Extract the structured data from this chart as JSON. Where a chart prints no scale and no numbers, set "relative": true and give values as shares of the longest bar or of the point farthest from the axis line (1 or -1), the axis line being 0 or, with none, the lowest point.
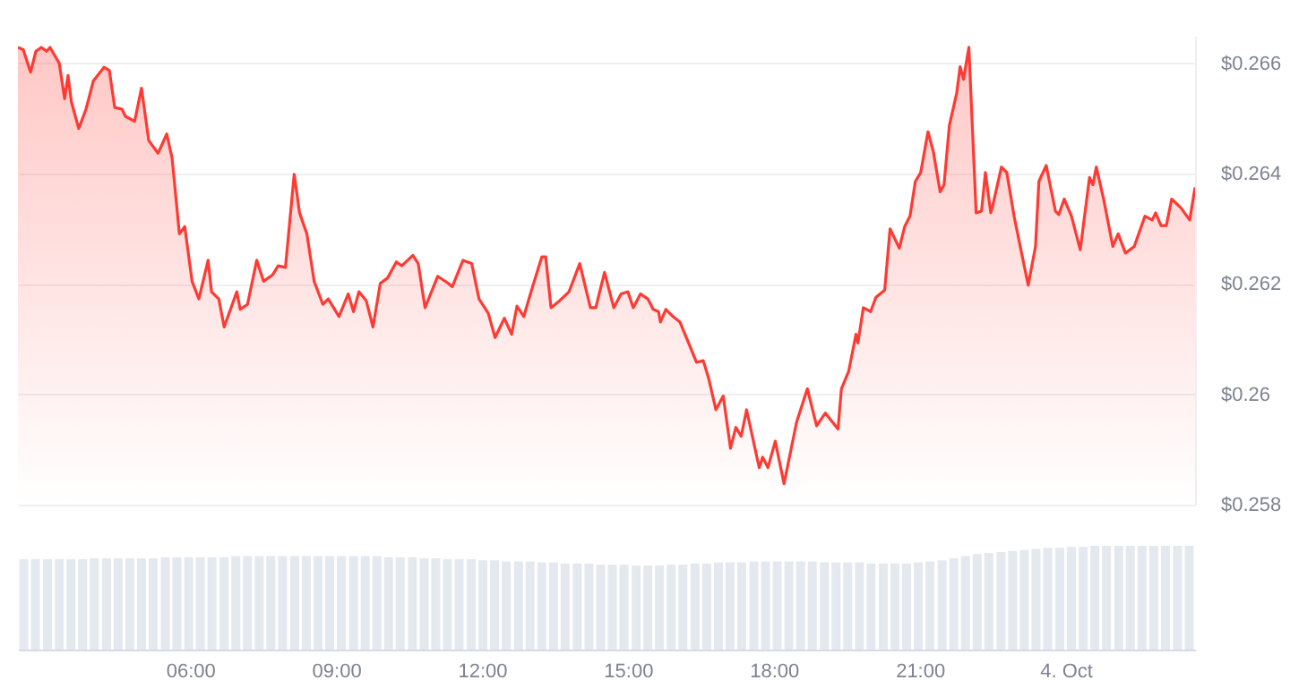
{
  "chart_data": [
    {
      "type": "area",
      "tick_labels": "y",
      "grid": "y",
      "xlim": [
        2.46,
        26.66
      ],
      "ylim": [
        0.258,
        0.2665
      ],
      "yticks": [
        {
          "value": 0.258,
          "label": "$0.258"
        },
        {
          "value": 0.26,
          "label": "$0.26"
        },
        {
          "value": 0.262,
          "label": "$0.262"
        },
        {
          "value": 0.264,
          "label": "$0.264"
        },
        {
          "value": 0.266,
          "label": "$0.266"
        }
      ],
      "x": [
        2.46,
        2.57,
        2.72,
        2.83,
        2.94,
        3.05,
        3.12,
        3.31,
        3.42,
        3.49,
        3.56,
        3.71,
        3.86,
        4.01,
        4.23,
        4.34,
        4.45,
        4.6,
        4.67,
        4.86,
        5.0,
        5.15,
        5.34,
        5.52,
        5.63,
        5.78,
        5.89,
        6.04,
        6.18,
        6.37,
        6.44,
        6.59,
        6.7,
        6.96,
        7.03,
        7.18,
        7.37,
        7.51,
        7.7,
        7.81,
        7.96,
        8.14,
        8.25,
        8.4,
        8.55,
        8.73,
        8.84,
        8.95,
        9.06,
        9.25,
        9.36,
        9.47,
        9.62,
        9.76,
        9.91,
        10.06,
        10.24,
        10.35,
        10.58,
        10.69,
        10.83,
        11.09,
        11.31,
        11.39,
        11.61,
        11.79,
        11.94,
        12.13,
        12.27,
        12.46,
        12.61,
        12.72,
        12.86,
        13.01,
        13.23,
        13.31,
        13.42,
        13.6,
        13.79,
        14.01,
        14.23,
        14.34,
        14.52,
        14.71,
        14.86,
        15.0,
        15.11,
        15.26,
        15.41,
        15.52,
        15.63,
        15.67,
        15.78,
        15.93,
        16.07,
        16.22,
        16.41,
        16.55,
        16.66,
        16.81,
        16.96,
        17.11,
        17.22,
        17.33,
        17.44,
        17.7,
        17.77,
        17.88,
        18.03,
        18.21,
        18.47,
        18.69,
        18.88,
        19.06,
        19.32,
        19.39,
        19.54,
        19.69,
        19.73,
        19.84,
        19.99,
        20.1,
        20.28,
        20.39,
        20.58,
        20.69,
        20.8,
        20.91,
        21.02,
        21.17,
        21.28,
        21.42,
        21.5,
        21.61,
        21.76,
        21.83,
        21.9,
        22.01,
        22.16,
        22.27,
        22.35,
        22.46,
        22.49,
        22.68,
        22.79,
        22.94,
        23.05,
        23.23,
        23.38,
        23.45,
        23.6,
        23.79,
        23.86,
        23.97,
        24.12,
        24.3,
        24.49,
        24.56,
        24.63,
        24.78,
        24.97,
        25.08,
        25.23,
        25.41,
        25.63,
        25.78,
        25.85,
        25.96,
        26.07,
        26.18,
        26.37,
        26.55,
        26.66
      ],
      "series": [
        {
          "color": "#ff3a33",
          "values": [
            0.26629,
            0.26625,
            0.26584,
            0.26622,
            0.26629,
            0.26622,
            0.26629,
            0.266,
            0.26536,
            0.26578,
            0.2653,
            0.26482,
            0.26517,
            0.26568,
            0.26593,
            0.26587,
            0.2652,
            0.26517,
            0.26504,
            0.26495,
            0.26555,
            0.2646,
            0.26437,
            0.26472,
            0.26428,
            0.26291,
            0.26304,
            0.26205,
            0.26173,
            0.26243,
            0.26186,
            0.26173,
            0.26122,
            0.26186,
            0.26154,
            0.26163,
            0.26243,
            0.26205,
            0.26217,
            0.26233,
            0.2623,
            0.26399,
            0.26329,
            0.26291,
            0.26205,
            0.26163,
            0.26173,
            0.26157,
            0.26141,
            0.26182,
            0.2615,
            0.26186,
            0.2617,
            0.26122,
            0.26201,
            0.26211,
            0.2624,
            0.26233,
            0.26252,
            0.26237,
            0.26157,
            0.26214,
            0.26201,
            0.26195,
            0.26243,
            0.26237,
            0.26173,
            0.26147,
            0.26103,
            0.26138,
            0.26109,
            0.2616,
            0.26141,
            0.26186,
            0.26249,
            0.26249,
            0.26157,
            0.2617,
            0.26186,
            0.26237,
            0.26157,
            0.26157,
            0.26221,
            0.26157,
            0.26182,
            0.26186,
            0.26157,
            0.26182,
            0.26173,
            0.26154,
            0.2615,
            0.26131,
            0.26154,
            0.26141,
            0.26131,
            0.26099,
            0.26058,
            0.26061,
            0.26029,
            0.25972,
            0.25997,
            0.25902,
            0.2594,
            0.25924,
            0.25972,
            0.25867,
            0.25886,
            0.25867,
            0.25915,
            0.25838,
            0.2595,
            0.2601,
            0.25943,
            0.25966,
            0.25937,
            0.2601,
            0.26042,
            0.26109,
            0.26093,
            0.26157,
            0.2615,
            0.26176,
            0.26189,
            0.263,
            0.26265,
            0.26304,
            0.26323,
            0.26386,
            0.26402,
            0.26476,
            0.2644,
            0.26367,
            0.2638,
            0.26488,
            0.26546,
            0.26594,
            0.26571,
            0.26629,
            0.26329,
            0.26332,
            0.26402,
            0.26329,
            0.26338,
            0.26412,
            0.26402,
            0.26323,
            0.26275,
            0.26198,
            0.26268,
            0.26386,
            0.26415,
            0.26332,
            0.26326,
            0.26354,
            0.26323,
            0.26262,
            0.26393,
            0.2638,
            0.26412,
            0.26354,
            0.26268,
            0.26291,
            0.26256,
            0.26268,
            0.26323,
            0.26316,
            0.26329,
            0.26306,
            0.26306,
            0.26354,
            0.26338,
            0.26316,
            0.26375
          ]
        }
      ]
    },
    {
      "type": "bar",
      "relative": true,
      "tick_labels": "x",
      "xlim": [
        2.46,
        26.66
      ],
      "xticks": [
        {
          "value": 6,
          "label": "06:00"
        },
        {
          "value": 9,
          "label": "09:00"
        },
        {
          "value": 12,
          "label": "12:00"
        },
        {
          "value": 15,
          "label": "15:00"
        },
        {
          "value": 18,
          "label": "18:00"
        },
        {
          "value": 21,
          "label": "21:00"
        },
        {
          "value": 24,
          "label": "4. Oct"
        }
      ],
      "x": [
        2.58,
        2.82,
        3.07,
        3.31,
        3.55,
        3.79,
        4.03,
        4.28,
        4.52,
        4.76,
        5.0,
        5.24,
        5.49,
        5.73,
        5.97,
        6.21,
        6.45,
        6.7,
        6.94,
        7.18,
        7.42,
        7.66,
        7.9,
        8.15,
        8.39,
        8.63,
        8.87,
        9.11,
        9.36,
        9.6,
        9.84,
        10.08,
        10.32,
        10.57,
        10.81,
        11.05,
        11.29,
        11.53,
        11.78,
        12.02,
        12.26,
        12.5,
        12.75,
        12.99,
        13.23,
        13.47,
        13.71,
        13.96,
        14.2,
        14.44,
        14.68,
        14.92,
        15.17,
        15.41,
        15.65,
        15.89,
        16.13,
        16.38,
        16.62,
        16.86,
        17.1,
        17.34,
        17.59,
        17.83,
        18.07,
        18.31,
        18.55,
        18.79,
        19.04,
        19.28,
        19.52,
        19.76,
        20.0,
        20.25,
        20.49,
        20.73,
        20.97,
        21.21,
        21.46,
        21.7,
        21.94,
        22.18,
        22.42,
        22.67,
        22.91,
        23.15,
        23.39,
        23.63,
        23.88,
        24.12,
        24.36,
        24.6,
        24.84,
        25.09,
        25.33,
        25.57,
        25.81,
        26.05,
        26.3,
        26.54
      ],
      "series": [
        {
          "color": "#e4e9f0",
          "values": [
            0.87,
            0.87,
            0.87,
            0.87,
            0.87,
            0.87,
            0.88,
            0.88,
            0.88,
            0.88,
            0.88,
            0.88,
            0.89,
            0.89,
            0.89,
            0.89,
            0.89,
            0.89,
            0.9,
            0.9,
            0.9,
            0.9,
            0.9,
            0.9,
            0.9,
            0.9,
            0.9,
            0.9,
            0.9,
            0.9,
            0.9,
            0.89,
            0.89,
            0.89,
            0.88,
            0.88,
            0.87,
            0.87,
            0.87,
            0.86,
            0.86,
            0.85,
            0.85,
            0.85,
            0.84,
            0.84,
            0.83,
            0.83,
            0.83,
            0.82,
            0.82,
            0.82,
            0.81,
            0.81,
            0.81,
            0.82,
            0.82,
            0.83,
            0.83,
            0.84,
            0.84,
            0.84,
            0.85,
            0.85,
            0.85,
            0.85,
            0.85,
            0.85,
            0.84,
            0.84,
            0.84,
            0.84,
            0.83,
            0.83,
            0.83,
            0.83,
            0.84,
            0.85,
            0.86,
            0.88,
            0.9,
            0.92,
            0.93,
            0.94,
            0.95,
            0.96,
            0.97,
            0.98,
            0.98,
            0.99,
            0.99,
            1,
            1,
            1,
            1,
            1,
            1,
            1,
            1,
            1
          ]
        }
      ]
    }
  ]
}
